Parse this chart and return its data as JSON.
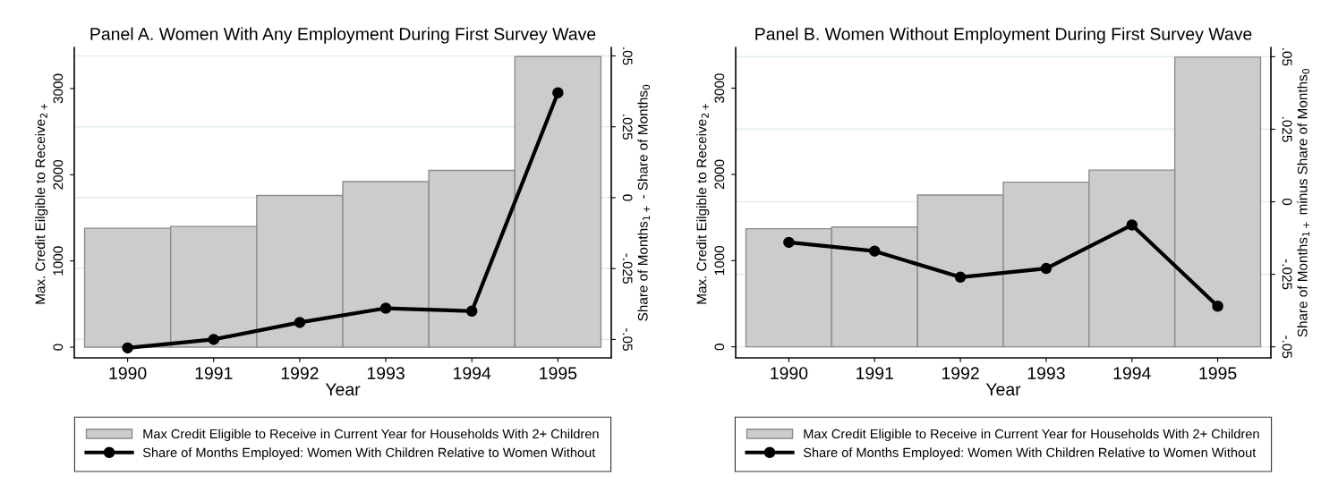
{
  "chart_data": [
    {
      "type": "bar",
      "title": "Panel A. Women With Any Employment During First Survey Wave",
      "xlabel": "Year",
      "ylabel": "Max. Credit Eilgible to Receive$_{2+}$",
      "y2label": "Share of Months$_{1+}$ - Share of Months$_{0}$",
      "categories": [
        "1990",
        "1991",
        "1992",
        "1993",
        "1994",
        "1995"
      ],
      "series": [
        {
          "name": "Max Credit Eligible to Receive in Current Year for Households With 2+ Children",
          "color": "#cccccc",
          "values": [
            1380,
            1400,
            1760,
            1920,
            2050,
            3370
          ]
        },
        {
          "name": "Share of Months Employed: Women With Children Relative to Women Without",
          "type": "line",
          "axis": "y2",
          "color": "#000000",
          "values": [
            -0.053,
            -0.05,
            -0.044,
            -0.039,
            -0.04,
            0.037
          ]
        }
      ],
      "ylim": [
        -124,
        3477
      ],
      "yticks": [
        0,
        1000,
        2000,
        3000
      ],
      "y2lim": [
        -0.0565,
        0.053
      ],
      "y2ticks": [
        {
          "value": -0.05,
          "label": "-.05"
        },
        {
          "value": -0.025,
          "label": "-.025"
        },
        {
          "value": 0,
          "label": "0"
        },
        {
          "value": 0.025,
          "label": ".025"
        },
        {
          "value": 0.05,
          "label": ".05"
        }
      ],
      "grid": "y2",
      "legend": "bottom",
      "marker": "circle"
    },
    {
      "type": "bar",
      "title": "Panel B. Women Without Employment During First Survey Wave",
      "xlabel": "Year",
      "ylabel": "Max. Credit Eilgible to Receive$_{2+}$",
      "y2label": "Share of Months$_{1+}$ minus Share of Months$_{0}$",
      "categories": [
        "1990",
        "1991",
        "1992",
        "1993",
        "1994",
        "1995"
      ],
      "series": [
        {
          "name": "Max Credit Eligible to Receive in Current Year for Households With 2+ Children",
          "color": "#cccccc",
          "values": [
            1370,
            1390,
            1760,
            1910,
            2050,
            3360
          ]
        },
        {
          "name": "Share of Months Employed: Women With Children Relative to Women Without",
          "type": "line",
          "axis": "y2",
          "color": "#000000",
          "values": [
            -0.014,
            -0.017,
            -0.026,
            -0.023,
            -0.008,
            -0.036
          ]
        }
      ],
      "ylim": [
        -128,
        3473
      ],
      "yticks": [
        0,
        1000,
        2000,
        3000
      ],
      "y2lim": [
        -0.0538,
        0.0532
      ],
      "y2ticks": [
        {
          "value": -0.05,
          "label": "-.05"
        },
        {
          "value": -0.025,
          "label": "-.025"
        },
        {
          "value": 0,
          "label": "0"
        },
        {
          "value": 0.025,
          "label": ".025"
        },
        {
          "value": 0.05,
          "label": ".05"
        }
      ],
      "grid": "y2",
      "legend": "bottom",
      "marker": "circle"
    }
  ]
}
